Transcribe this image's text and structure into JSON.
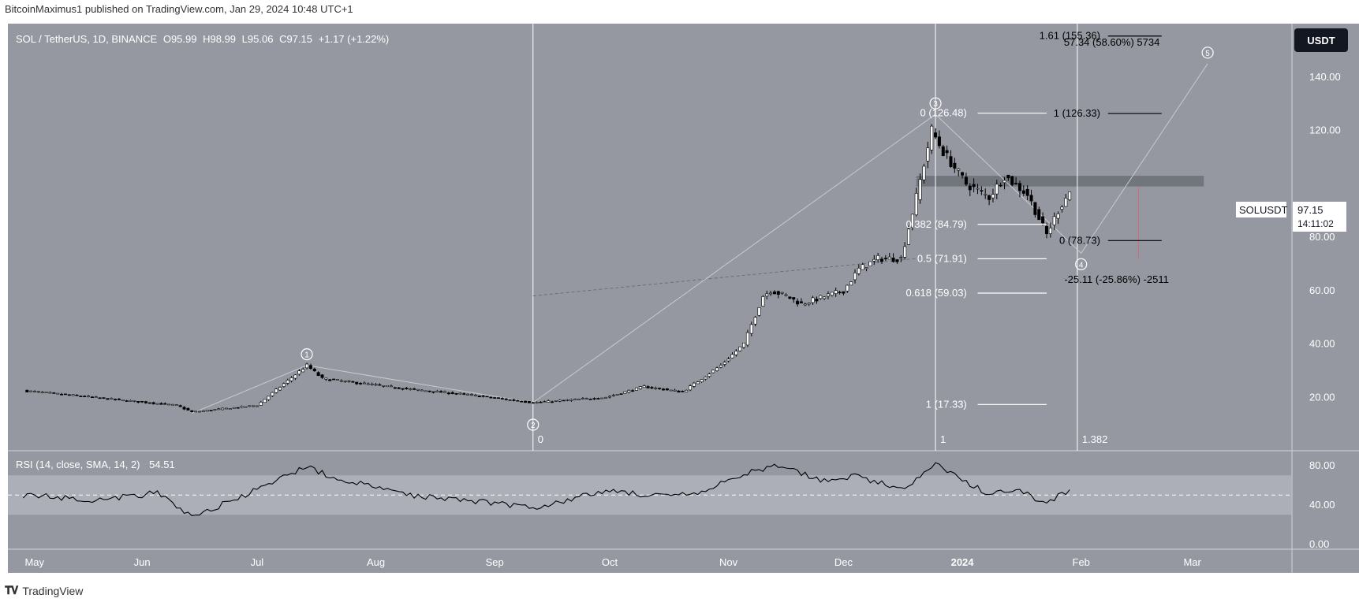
{
  "header": {
    "published": "BitcoinMaximus1 published on TradingView.com, Jan 29, 2024 10:48 UTC+1"
  },
  "footer": {
    "brand": "TradingView"
  },
  "legend": {
    "symbol": "SOL / TetherUS, 1D, BINANCE",
    "o_label": "O",
    "o": "95.99",
    "h_label": "H",
    "h": "98.99",
    "l_label": "L",
    "l": "95.06",
    "c_label": "C",
    "c": "97.15",
    "change": "+1.17 (+1.22%)"
  },
  "currency_button": "USDT",
  "price_tag": {
    "symbol": "SOLUSDT",
    "price": "97.15",
    "countdown": "14:11:02"
  },
  "rsi_legend": {
    "label": "RSI (14, close, SMA, 14, 2)",
    "value": "54.51"
  },
  "colors": {
    "bg": "#9598a1",
    "up": "#ffffff",
    "down": "#000000",
    "band": "#b2b5be"
  },
  "chart_data": {
    "type": "candlestick",
    "x_axis": {
      "ticks": [
        "May",
        "Jun",
        "Jul",
        "Aug",
        "Sep",
        "Oct",
        "Nov",
        "Dec",
        "2024",
        "Feb",
        "Mar"
      ]
    },
    "y_axis": {
      "ticks": [
        20,
        40,
        60,
        80,
        100,
        120,
        140
      ],
      "tick_labels": [
        "20.00",
        "40.00",
        "60.00",
        "80.00",
        "",
        "120.00",
        "140.00"
      ],
      "range": [
        0,
        160
      ]
    },
    "rsi_axis": {
      "ticks": [
        0,
        40,
        80
      ],
      "tick_labels": [
        "0.00",
        "40.00",
        "80.00"
      ],
      "range": [
        -5,
        95
      ],
      "band": [
        30,
        70
      ],
      "mid": 50
    },
    "price_anchors": [
      [
        "2023-05-01",
        22.5
      ],
      [
        "2023-06-10",
        17
      ],
      [
        "2023-06-14",
        14.5
      ],
      [
        "2023-07-01",
        17
      ],
      [
        "2023-07-14",
        32
      ],
      [
        "2023-07-18",
        27
      ],
      [
        "2023-08-10",
        23
      ],
      [
        "2023-08-25",
        21
      ],
      [
        "2023-09-11",
        18
      ],
      [
        "2023-09-30",
        20
      ],
      [
        "2023-10-10",
        24
      ],
      [
        "2023-10-20",
        22
      ],
      [
        "2023-10-30",
        32
      ],
      [
        "2023-11-05",
        40
      ],
      [
        "2023-11-10",
        58
      ],
      [
        "2023-11-12",
        60
      ],
      [
        "2023-11-16",
        58
      ],
      [
        "2023-11-20",
        55
      ],
      [
        "2023-12-01",
        60
      ],
      [
        "2023-12-05",
        68
      ],
      [
        "2023-12-10",
        72
      ],
      [
        "2023-12-16",
        72
      ],
      [
        "2023-12-20",
        95
      ],
      [
        "2023-12-24",
        120
      ],
      [
        "2023-12-27",
        112
      ],
      [
        "2024-01-02",
        100
      ],
      [
        "2024-01-08",
        95
      ],
      [
        "2024-01-12",
        103
      ],
      [
        "2024-01-18",
        96
      ],
      [
        "2024-01-23",
        81
      ],
      [
        "2024-01-26",
        90
      ],
      [
        "2024-01-29",
        97.15
      ]
    ],
    "rsi_anchors": [
      [
        "2023-05-01",
        50
      ],
      [
        "2023-05-20",
        45
      ],
      [
        "2023-06-05",
        52
      ],
      [
        "2023-06-14",
        28
      ],
      [
        "2023-06-25",
        45
      ],
      [
        "2023-07-05",
        62
      ],
      [
        "2023-07-14",
        80
      ],
      [
        "2023-07-20",
        68
      ],
      [
        "2023-08-10",
        50
      ],
      [
        "2023-08-25",
        45
      ],
      [
        "2023-09-05",
        40
      ],
      [
        "2023-09-12",
        38
      ],
      [
        "2023-10-01",
        55
      ],
      [
        "2023-10-15",
        48
      ],
      [
        "2023-10-25",
        52
      ],
      [
        "2023-11-05",
        72
      ],
      [
        "2023-11-15",
        80
      ],
      [
        "2023-11-25",
        65
      ],
      [
        "2023-12-05",
        70
      ],
      [
        "2023-12-10",
        62
      ],
      [
        "2023-12-18",
        58
      ],
      [
        "2023-12-25",
        82
      ],
      [
        "2024-01-02",
        62
      ],
      [
        "2024-01-08",
        52
      ],
      [
        "2024-01-15",
        55
      ],
      [
        "2024-01-23",
        42
      ],
      [
        "2024-01-29",
        54.51
      ]
    ],
    "fib_levels_left": [
      {
        "label": "0 (126.48)",
        "value": 126.48
      },
      {
        "label": "0.382 (84.79)",
        "value": 84.79
      },
      {
        "label": "0.5 (71.91)",
        "value": 71.91
      },
      {
        "label": "0.618 (59.03)",
        "value": 59.03
      },
      {
        "label": "1 (17.33)",
        "value": 17.33
      }
    ],
    "fib_levels_right": [
      {
        "label": "1.61 (155.36)",
        "value": 155.36
      },
      {
        "label": "1 (126.33)",
        "value": 126.33
      },
      {
        "label": "0 (78.73)",
        "value": 78.73
      }
    ],
    "measure_up": "57.34 (58.60%) 5734",
    "measure_down": "-25.11 (-25.86%) -2511",
    "resistance_zone": [
      99,
      103
    ],
    "time_fib": {
      "labels": [
        "0",
        "1",
        "1.382"
      ],
      "dates": [
        "2023-09-11",
        "2023-12-25",
        "2024-01-31"
      ]
    },
    "wave_labels": [
      {
        "label": "1",
        "date": "2023-07-14",
        "value": 32
      },
      {
        "label": "2",
        "date": "2023-09-11",
        "value": 18
      },
      {
        "label": "3",
        "date": "2023-12-25",
        "value": 126
      },
      {
        "label": "4",
        "date": "2024-02-01",
        "value": 74
      },
      {
        "label": "5",
        "date": "2024-03-05",
        "value": 145
      }
    ],
    "wave_path": [
      [
        "2023-06-14",
        14
      ],
      [
        "2023-07-14",
        32
      ],
      [
        "2023-09-11",
        18
      ],
      [
        "2023-12-25",
        126
      ],
      [
        "2024-02-01",
        74
      ],
      [
        "2024-03-05",
        145
      ]
    ]
  }
}
